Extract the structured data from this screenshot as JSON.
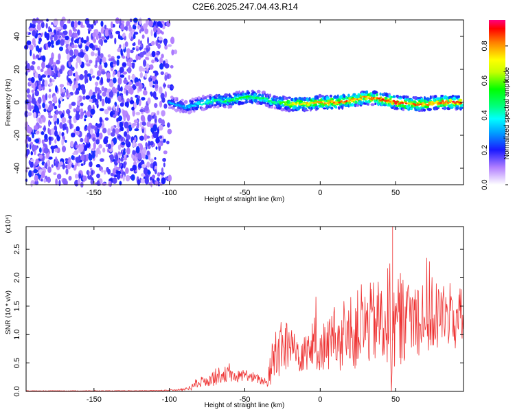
{
  "title": "C2E6.2025.247.04.43.R14",
  "chart_data": [
    {
      "type": "heatmap",
      "title": "C2E6.2025.247.04.43.R14",
      "xlabel": "Height of straight line (km)",
      "ylabel": "Frequency (Hz)",
      "xlim": [
        -195,
        95
      ],
      "ylim": [
        -50,
        50
      ],
      "xticks": [
        -150,
        -100,
        -50,
        0,
        50
      ],
      "yticks": [
        -40,
        -20,
        0,
        20,
        40
      ],
      "noise_region_x": [
        -195,
        -95
      ],
      "signal_ridge": {
        "x": [
          -100,
          -90,
          -80,
          -70,
          -60,
          -50,
          -40,
          -30,
          -20,
          -10,
          0,
          10,
          20,
          30,
          40,
          50,
          60,
          70,
          80,
          90
        ],
        "freq": [
          0,
          -3,
          -1,
          1,
          1,
          3,
          3,
          0,
          -1,
          -1,
          0,
          0,
          1,
          3,
          2,
          0,
          -1,
          -1,
          0,
          0
        ],
        "amplitude": [
          0.35,
          0.3,
          0.4,
          0.45,
          0.5,
          0.55,
          0.5,
          0.45,
          0.7,
          0.75,
          0.8,
          0.85,
          0.85,
          0.8,
          0.85,
          0.9,
          0.85,
          0.8,
          0.85,
          0.9
        ]
      },
      "colorbar": {
        "label": "Normalized spectral amplitude",
        "range": [
          0.0,
          0.95
        ],
        "ticks": [
          "0.0",
          "0.2",
          "0.4",
          "0.6",
          "0.8"
        ],
        "tick_values": [
          0.0,
          0.2,
          0.4,
          0.6,
          0.8
        ],
        "stops": [
          {
            "v": 0.0,
            "color": "#ffffff"
          },
          {
            "v": 0.1,
            "color": "#b27fff"
          },
          {
            "v": 0.2,
            "color": "#1a1aff"
          },
          {
            "v": 0.3,
            "color": "#00a0ff"
          },
          {
            "v": 0.38,
            "color": "#00ffff"
          },
          {
            "v": 0.45,
            "color": "#00ff80"
          },
          {
            "v": 0.55,
            "color": "#00ff00"
          },
          {
            "v": 0.65,
            "color": "#c8ff00"
          },
          {
            "v": 0.72,
            "color": "#ffff00"
          },
          {
            "v": 0.82,
            "color": "#ff8000"
          },
          {
            "v": 0.9,
            "color": "#ff0000"
          },
          {
            "v": 0.95,
            "color": "#ff0080"
          }
        ]
      }
    },
    {
      "type": "line",
      "xlabel": "Height of straight line (km)",
      "ylabel": "SNR (10 * v/v)",
      "y_multiplier_label": "(x10⁴)",
      "xlim": [
        -195,
        95
      ],
      "ylim": [
        0,
        2.9
      ],
      "xticks": [
        -150,
        -100,
        -50,
        0,
        50
      ],
      "yticks": [
        "0.0",
        "0.5",
        "1.0",
        "1.5",
        "2.0",
        "2.5"
      ],
      "ytick_values": [
        0.0,
        0.5,
        1.0,
        1.5,
        2.0,
        2.5
      ],
      "line_color": "#ee3333",
      "series": [
        {
          "name": "SNR",
          "x": [
            -195,
            -170,
            -150,
            -120,
            -100,
            -90,
            -85,
            -80,
            -75,
            -70,
            -65,
            -60,
            -55,
            -50,
            -45,
            -40,
            -35,
            -32,
            -30,
            -25,
            -20,
            -15,
            -10,
            -5,
            0,
            5,
            10,
            15,
            20,
            25,
            30,
            35,
            40,
            45,
            48,
            50,
            55,
            60,
            65,
            70,
            75,
            80,
            85,
            90,
            95
          ],
          "y": [
            0.01,
            0.01,
            0.01,
            0.01,
            0.02,
            0.03,
            0.08,
            0.15,
            0.2,
            0.25,
            0.3,
            0.3,
            0.25,
            0.3,
            0.25,
            0.2,
            0.15,
            0.5,
            0.7,
            0.75,
            0.8,
            0.7,
            0.75,
            0.8,
            0.75,
            0.85,
            0.9,
            0.9,
            1.0,
            1.1,
            1.15,
            1.2,
            1.25,
            1.3,
            1.2,
            1.25,
            1.3,
            1.3,
            1.35,
            1.4,
            1.3,
            1.35,
            1.3,
            1.3,
            1.2
          ],
          "spread": [
            0.005,
            0.005,
            0.005,
            0.005,
            0.01,
            0.02,
            0.06,
            0.1,
            0.12,
            0.15,
            0.15,
            0.12,
            0.12,
            0.1,
            0.1,
            0.08,
            0.08,
            0.4,
            0.55,
            0.5,
            0.45,
            0.4,
            0.4,
            0.45,
            0.4,
            0.5,
            0.55,
            0.6,
            0.65,
            0.7,
            0.7,
            0.75,
            0.75,
            0.9,
            1.5,
            0.85,
            0.8,
            0.75,
            0.75,
            0.7,
            0.7,
            0.65,
            0.65,
            0.6,
            0.6
          ]
        }
      ],
      "peak": {
        "x": 48,
        "y": 2.9
      }
    }
  ]
}
